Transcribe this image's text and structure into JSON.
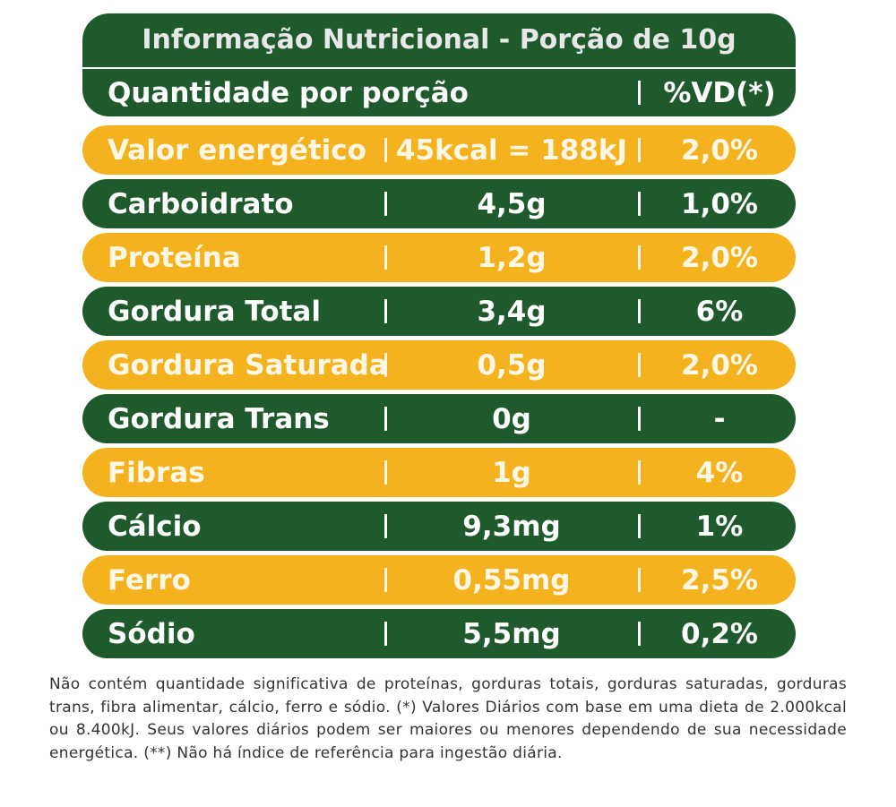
{
  "title": "Informação Nutricional - Porção de 10g",
  "header": {
    "quantity": "Quantidade por porção",
    "vd": "%VD(*)"
  },
  "table": {
    "rows": [
      [
        "Valor energético",
        "45kcal = 188kJ",
        "2,0%"
      ],
      [
        "Carboidrato",
        "4,5g",
        "1,0%"
      ],
      [
        "Proteína",
        "1,2g",
        "2,0%"
      ],
      [
        "Gordura Total",
        "3,4g",
        "6%"
      ],
      [
        "Gordura Saturada",
        "0,5g",
        "2,0%"
      ],
      [
        "Gordura Trans",
        "0g",
        "-"
      ],
      [
        "Fibras",
        "1g",
        "4%"
      ],
      [
        "Cálcio",
        "9,3mg",
        "1%"
      ],
      [
        "Ferro",
        "0,55mg",
        "2,5%"
      ],
      [
        "Sódio",
        "5,5mg",
        "0,2%"
      ]
    ]
  },
  "footnote": "Não contém quantidade significativa de proteínas, gorduras totais, gorduras saturadas, gorduras trans, fibra alimentar, cálcio, ferro e sódio. (*) Valores Diários com base em uma dieta de 2.000kcal ou 8.400kJ. Seus valores diários podem ser maiores ou menores dependendo de sua necessidade energética. (**) Não há índice de referência para ingestão diária."
}
